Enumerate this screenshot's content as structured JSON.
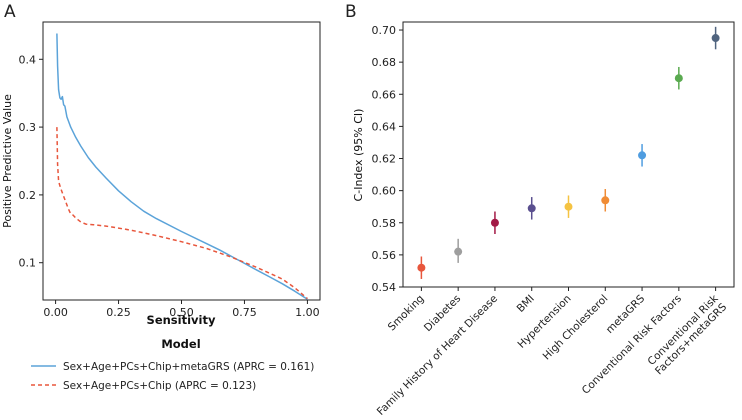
{
  "chart_data": [
    {
      "panel": "A",
      "type": "line",
      "xlabel": "Sensitivity",
      "ylabel": "Positive Predictive Value",
      "xlim": [
        -0.05,
        1.05
      ],
      "ylim": [
        0.045,
        0.455
      ],
      "x_ticks": [
        0.0,
        0.25,
        0.5,
        0.75,
        1.0
      ],
      "x_tick_labels": [
        "0.00",
        "0.25",
        "0.50",
        "0.75",
        "1.00"
      ],
      "y_ticks": [
        0.1,
        0.2,
        0.3,
        0.4
      ],
      "y_tick_labels": [
        "0.1",
        "0.2",
        "0.3",
        "0.4"
      ],
      "legend_title": "Model",
      "legend_position": "bottom",
      "series": [
        {
          "name": "Sex+Age+PCs+Chip+metaGRS (APRC = 0.161)",
          "color": "#5ba3d9",
          "style": "solid",
          "x": [
            0.005,
            0.008,
            0.012,
            0.017,
            0.022,
            0.027,
            0.032,
            0.037,
            0.045,
            0.06,
            0.08,
            0.1,
            0.13,
            0.16,
            0.2,
            0.25,
            0.3,
            0.35,
            0.4,
            0.5,
            0.6,
            0.65,
            0.7,
            0.75,
            0.8,
            0.85,
            0.9,
            0.95,
            1.0
          ],
          "y": [
            0.438,
            0.39,
            0.355,
            0.343,
            0.341,
            0.345,
            0.333,
            0.331,
            0.315,
            0.3,
            0.285,
            0.272,
            0.255,
            0.241,
            0.225,
            0.206,
            0.19,
            0.176,
            0.165,
            0.146,
            0.128,
            0.119,
            0.109,
            0.099,
            0.089,
            0.079,
            0.069,
            0.058,
            0.046
          ]
        },
        {
          "name": "Sex+Age+PCs+Chip (APRC = 0.123)",
          "color": "#e8563c",
          "style": "dashed",
          "x": [
            0.005,
            0.008,
            0.012,
            0.02,
            0.03,
            0.04,
            0.05,
            0.06,
            0.07,
            0.08,
            0.1,
            0.12,
            0.15,
            0.2,
            0.25,
            0.3,
            0.4,
            0.5,
            0.6,
            0.7,
            0.8,
            0.9,
            0.95,
            1.0
          ],
          "y": [
            0.3,
            0.245,
            0.22,
            0.21,
            0.2,
            0.19,
            0.18,
            0.172,
            0.17,
            0.166,
            0.16,
            0.157,
            0.156,
            0.154,
            0.151,
            0.148,
            0.14,
            0.131,
            0.121,
            0.108,
            0.093,
            0.076,
            0.063,
            0.047
          ]
        }
      ]
    },
    {
      "panel": "B",
      "type": "scatter",
      "xlabel": "",
      "ylabel": "C-Index (95% CI)",
      "ylim": [
        0.54,
        0.705
      ],
      "y_ticks": [
        0.54,
        0.56,
        0.58,
        0.6,
        0.62,
        0.64,
        0.66,
        0.68,
        0.7
      ],
      "y_tick_labels": [
        "0.54",
        "0.56",
        "0.58",
        "0.60",
        "0.62",
        "0.64",
        "0.66",
        "0.68",
        "0.70"
      ],
      "points": [
        {
          "label": "Smoking",
          "value": 0.552,
          "low": 0.545,
          "high": 0.559,
          "color": "#e8563c"
        },
        {
          "label": "Diabetes",
          "value": 0.562,
          "low": 0.555,
          "high": 0.57,
          "color": "#9e9e9e"
        },
        {
          "label": "Family History of Heart Disease",
          "value": 0.58,
          "low": 0.573,
          "high": 0.587,
          "color": "#a31a46"
        },
        {
          "label": "BMI",
          "value": 0.589,
          "low": 0.582,
          "high": 0.596,
          "color": "#5a4f8f"
        },
        {
          "label": "Hypertension",
          "value": 0.59,
          "low": 0.583,
          "high": 0.597,
          "color": "#f5c342"
        },
        {
          "label": "High Cholesterol",
          "value": 0.594,
          "low": 0.587,
          "high": 0.601,
          "color": "#f08c35"
        },
        {
          "label": "metaGRS",
          "value": 0.622,
          "low": 0.615,
          "high": 0.629,
          "color": "#4f9de0"
        },
        {
          "label": "Conventional Risk Factors",
          "value": 0.67,
          "low": 0.663,
          "high": 0.677,
          "color": "#5aaa50"
        },
        {
          "label": "Conventional Risk Factors+metaGRS",
          "value": 0.695,
          "low": 0.688,
          "high": 0.702,
          "color": "#50647f"
        }
      ]
    }
  ],
  "labels": {
    "panel_a": "A",
    "panel_b": "B"
  }
}
